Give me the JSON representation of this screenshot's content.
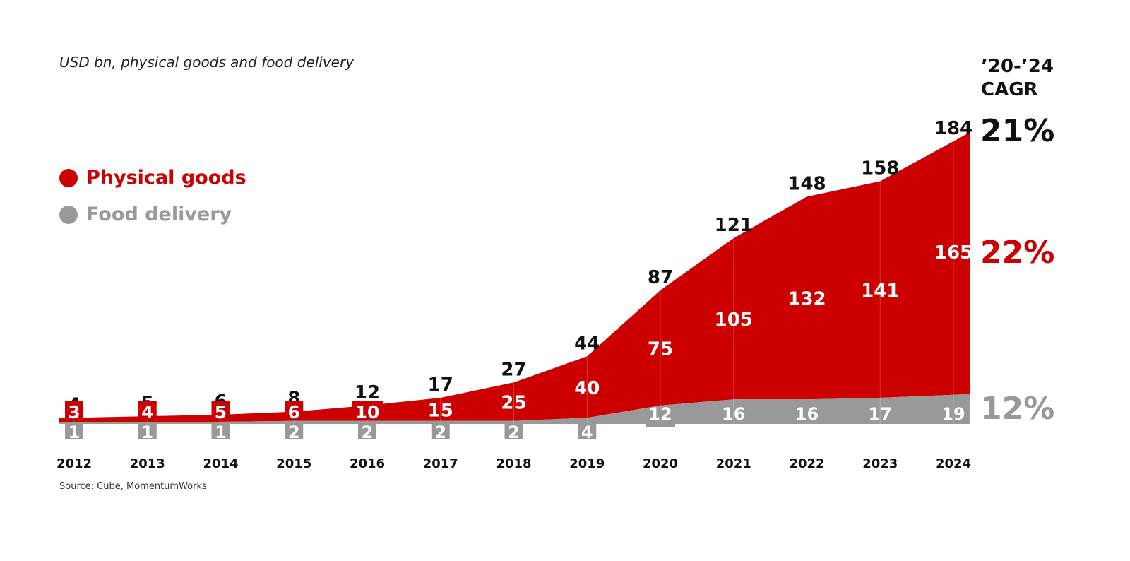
{
  "subtitle": "USD bn, physical goods and food delivery",
  "source": "Source: Cube, MomentumWorks",
  "legend": [
    {
      "label": "Physical goods",
      "color": "#cc0000"
    },
    {
      "label": "Food delivery",
      "color": "#999999"
    }
  ],
  "cagr": {
    "header_line1": "’20-’24",
    "header_line2": "CAGR",
    "total": "21%",
    "physical_goods": "22%",
    "food_delivery": "12%",
    "colors": {
      "total": "#111111",
      "physical_goods": "#cc0000",
      "food_delivery": "#999999"
    }
  },
  "chart_data": {
    "type": "area",
    "stacked": true,
    "title": "",
    "subtitle": "USD bn, physical goods and food delivery",
    "xlabel": "",
    "ylabel": "USD bn",
    "categories": [
      "2012",
      "2013",
      "2014",
      "2015",
      "2016",
      "2017",
      "2018",
      "2019",
      "2020",
      "2021",
      "2022",
      "2023",
      "2024"
    ],
    "series": [
      {
        "name": "Food delivery",
        "color": "#999999",
        "values": [
          1,
          1,
          1,
          2,
          2,
          2,
          2,
          4,
          12,
          16,
          16,
          17,
          19
        ]
      },
      {
        "name": "Physical goods",
        "color": "#cc0000",
        "values": [
          3,
          4,
          5,
          6,
          10,
          15,
          25,
          40,
          75,
          105,
          132,
          141,
          165
        ]
      }
    ],
    "totals": [
      4,
      5,
      6,
      8,
      12,
      17,
      27,
      44,
      87,
      121,
      148,
      158,
      184
    ],
    "ylim": [
      0,
      184
    ],
    "grid": false,
    "legend_position": "left",
    "annotations": [
      "’20-’24 CAGR: total 21%, physical goods 22%, food delivery 12%"
    ]
  }
}
